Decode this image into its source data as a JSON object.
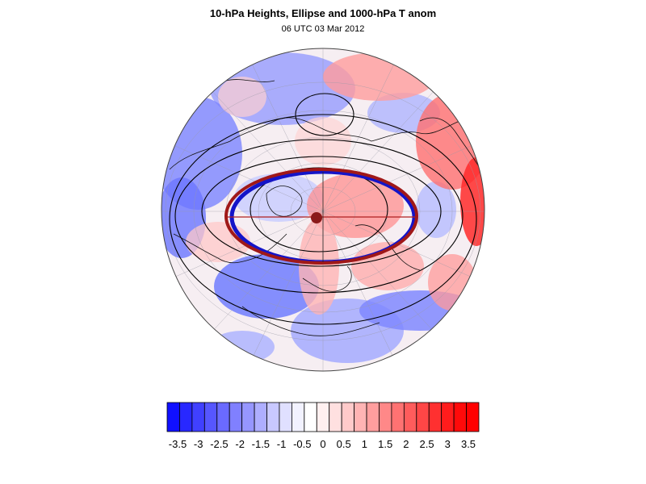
{
  "header": {
    "title": "10-hPa Heights, Ellipse and 1000-hPa T anom",
    "subtitle": "06 UTC 03 Mar 2012"
  },
  "map": {
    "projection": "orthographic polar view (North Pole centered)",
    "field": "temperature anomaly shading",
    "ellipse_fit_color": "#1010c0",
    "ellipse_fit_secondary_color": "#a01818",
    "contour_color": "#000000",
    "pole_marker_color": "#8b1a1a"
  },
  "colorbar": {
    "labels": [
      "-3.5",
      "-3",
      "-2.5",
      "-2",
      "-1.5",
      "-1",
      "-0.5",
      "0",
      "0.5",
      "1",
      "1.5",
      "2",
      "2.5",
      "3",
      "3.5"
    ],
    "colors": [
      "#1010ff",
      "#2828ff",
      "#4040ff",
      "#5656ff",
      "#6a6aff",
      "#8080ff",
      "#9696ff",
      "#aeaeff",
      "#c8c8ff",
      "#e0e0ff",
      "#f2f2ff",
      "#ffffff",
      "#fff0f0",
      "#ffe0e0",
      "#ffcaca",
      "#ffb4b4",
      "#ff9e9e",
      "#ff8888",
      "#ff7272",
      "#ff5c5c",
      "#ff4646",
      "#ff3030",
      "#ff1c1c",
      "#ff0a0a",
      "#ff0000"
    ]
  }
}
